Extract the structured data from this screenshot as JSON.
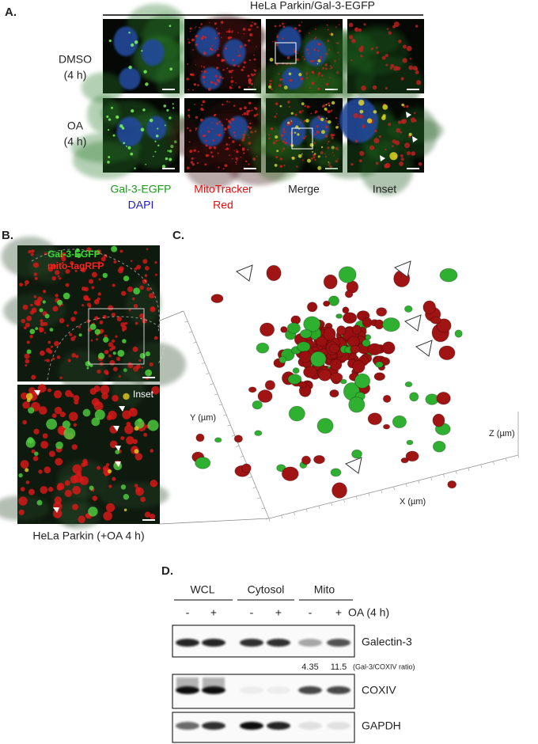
{
  "panel_a": {
    "label": "A.",
    "title": "HeLa Parkin/Gal-3-EGFP",
    "rows": [
      [
        "DMSO",
        "(4 h)"
      ],
      [
        "OA",
        "(4 h)"
      ]
    ],
    "columns": [
      [
        "Gal-3-EGFP",
        "DAPI"
      ],
      [
        "MitoTracker",
        "Red"
      ],
      [
        "Merge"
      ],
      [
        "Inset"
      ]
    ]
  },
  "panel_b": {
    "label": "B.",
    "legend": [
      "Gal-3-EGFP",
      "mito-tagRFP"
    ],
    "inset": "Inset",
    "caption": "HeLa Parkin (+OA 4 h)"
  },
  "panel_c": {
    "label": "C.",
    "y_axis": "Y (µm)",
    "x_axis": "X (µm)",
    "z_axis": "Z (µm)"
  },
  "panel_d": {
    "label": "D.",
    "groups": [
      "WCL",
      "Cytosol",
      "Mito"
    ],
    "lanes": [
      "-",
      "+",
      "-",
      "+",
      "-",
      "+"
    ],
    "treatment": "OA (4 h)",
    "blots": [
      "Galectin-3",
      "COXIV",
      "GAPDH"
    ],
    "ratios": [
      "4.35",
      "11.5"
    ],
    "ratio_label": "(Gal-3/COXIV ratio)"
  }
}
